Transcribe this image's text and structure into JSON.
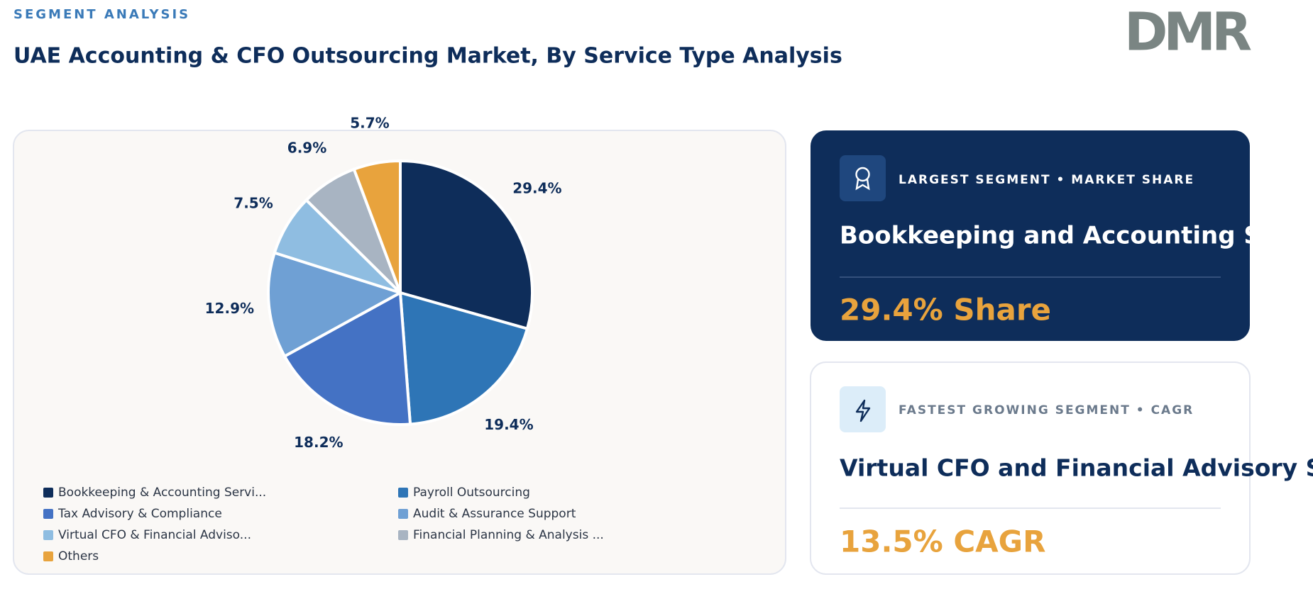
{
  "header": {
    "eyebrow": "SEGMENT ANALYSIS",
    "title": "UAE Accounting & CFO Outsourcing Market, By Service Type Analysis",
    "logo": "DMR"
  },
  "chart_data": {
    "type": "pie",
    "categories": [
      "Bookkeeping & Accounting Servi...",
      "Payroll Outsourcing",
      "Tax Advisory & Compliance",
      "Audit & Assurance Support",
      "Virtual CFO & Financial Adviso...",
      "Financial Planning & Analysis ...",
      "Others"
    ],
    "values": [
      29.4,
      19.4,
      18.2,
      12.9,
      7.5,
      6.9,
      5.7
    ],
    "value_labels": [
      "29.4%",
      "19.4%",
      "18.2%",
      "12.9%",
      "7.5%",
      "6.9%",
      "5.7%"
    ],
    "colors": [
      "#0e2d5a",
      "#2e75b6",
      "#4472c4",
      "#6fa0d4",
      "#8fbde1",
      "#a8b4c2",
      "#e8a33d"
    ]
  },
  "cards": [
    {
      "label": "LARGEST SEGMENT • MARKET SHARE",
      "name": "Bookkeeping and Accounting Services",
      "metric": "29.4% Share"
    },
    {
      "label": "FASTEST GROWING SEGMENT • CAGR",
      "name": "Virtual CFO and Financial Advisory Services",
      "metric": "13.5% CAGR"
    }
  ]
}
